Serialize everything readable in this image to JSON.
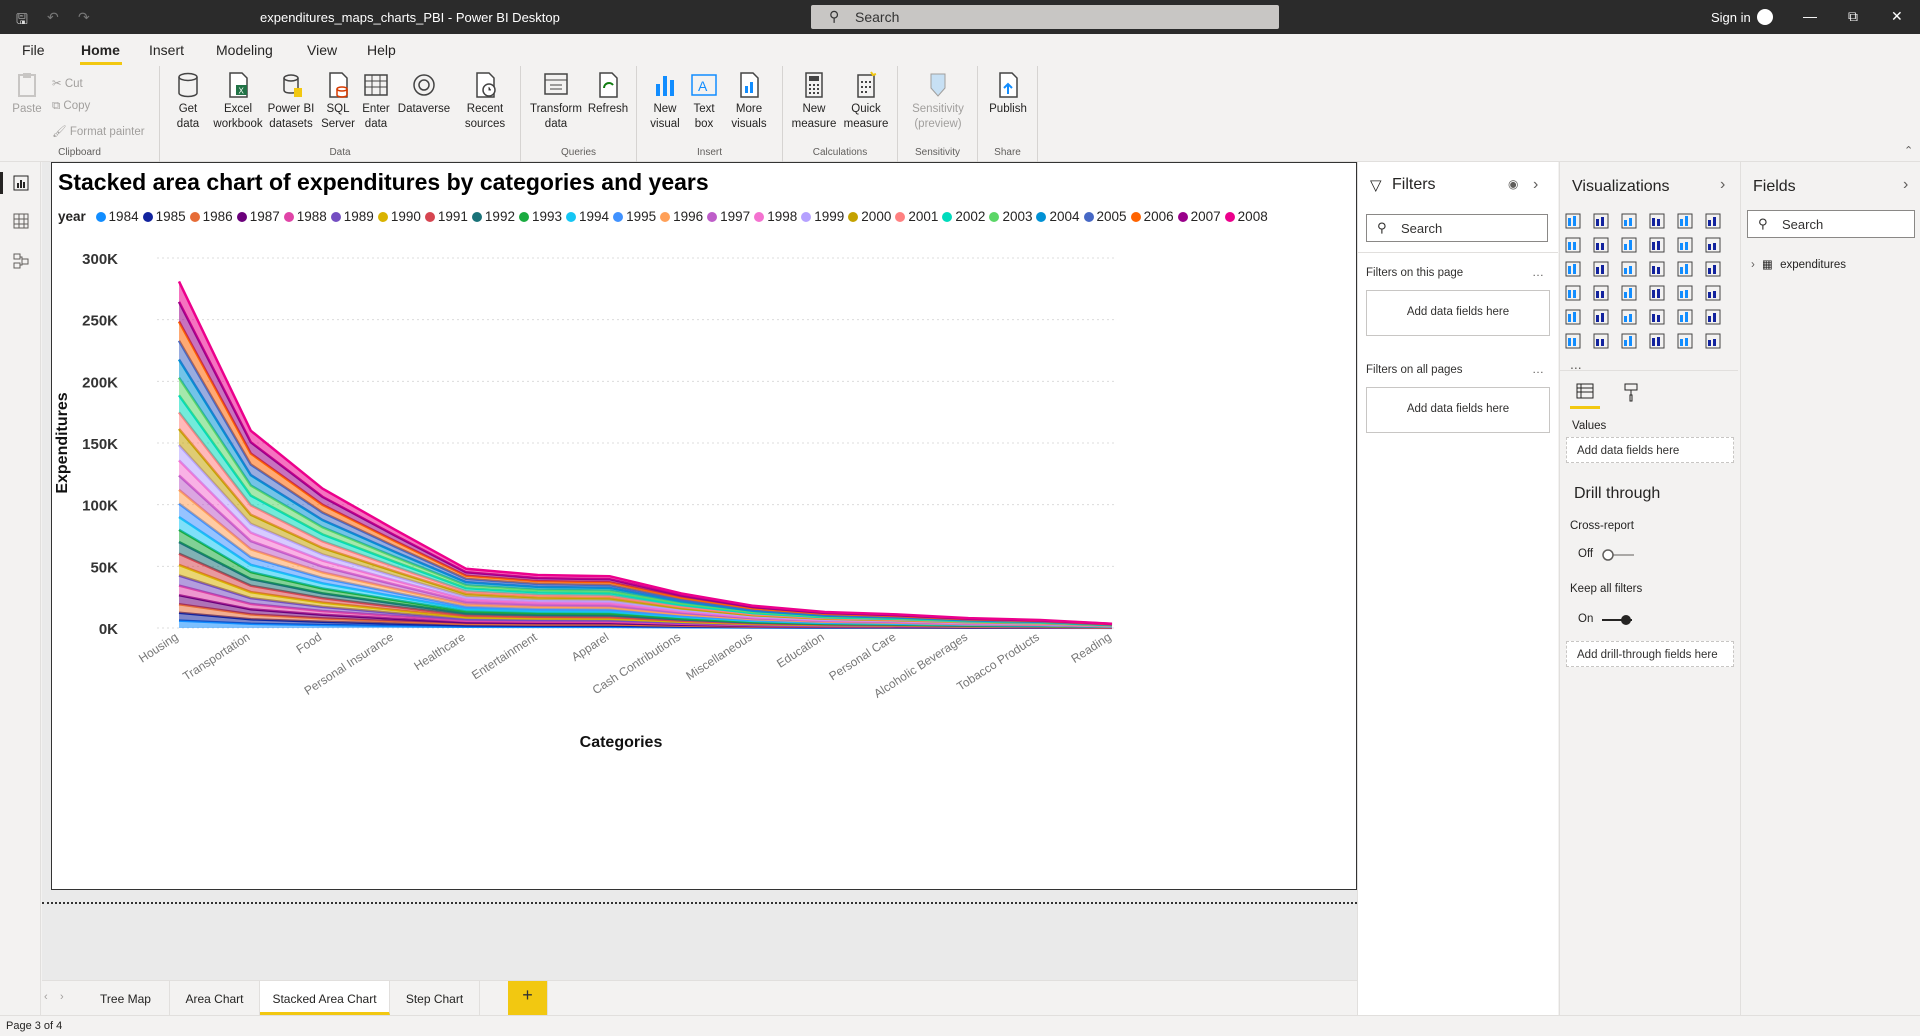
{
  "window": {
    "title": "expenditures_maps_charts_PBI - Power BI Desktop",
    "search_placeholder": "Search",
    "sign_in": "Sign in"
  },
  "menu": [
    "File",
    "Home",
    "Insert",
    "Modeling",
    "View",
    "Help"
  ],
  "ribbon": {
    "clipboard": {
      "paste": "Paste",
      "cut": "Cut",
      "copy": "Copy",
      "format_painter": "Format painter",
      "group": "Clipboard"
    },
    "data": {
      "get_data": "Get data",
      "excel": "Excel workbook",
      "pbi_datasets": "Power BI datasets",
      "sql": "SQL Server",
      "enter": "Enter data",
      "dataverse": "Dataverse",
      "recent": "Recent sources",
      "group": "Data"
    },
    "queries": {
      "transform": "Transform data",
      "refresh": "Refresh",
      "group": "Queries"
    },
    "insert": {
      "new_visual": "New visual",
      "text_box": "Text box",
      "more_visuals": "More visuals",
      "group": "Insert"
    },
    "calculations": {
      "new_measure": "New measure",
      "quick_measure": "Quick measure",
      "group": "Calculations"
    },
    "sensitivity": {
      "label": "Sensitivity (preview)",
      "group": "Sensitivity"
    },
    "share": {
      "publish": "Publish",
      "group": "Share"
    }
  },
  "filters": {
    "title": "Filters",
    "search": "Search",
    "on_page": "Filters on this page",
    "on_all": "Filters on all pages",
    "add_fields": "Add data fields here"
  },
  "visualizations": {
    "title": "Visualizations",
    "values_label": "Values",
    "add_fields": "Add data fields here",
    "drill_title": "Drill through",
    "cross_report": "Cross-report",
    "cross_state": "Off",
    "keep_filters": "Keep all filters",
    "keep_state": "On",
    "add_drill": "Add drill-through fields here",
    "more": "..."
  },
  "fields": {
    "title": "Fields",
    "search": "Search",
    "table": "expenditures"
  },
  "tabs": [
    "Tree Map",
    "Area Chart",
    "Stacked Area Chart",
    "Step Chart"
  ],
  "active_tab": "Stacked Area Chart",
  "status": "Page 3 of 4",
  "chart_data": {
    "type": "area",
    "title": "Stacked area chart of expenditures by categories and years",
    "xlabel": "Categories",
    "ylabel": "Expenditures",
    "legend_title": "year",
    "ylim": [
      0,
      300000
    ],
    "yticks": [
      "0K",
      "50K",
      "100K",
      "150K",
      "200K",
      "250K",
      "300K"
    ],
    "categories": [
      "Housing",
      "Transportation",
      "Food",
      "Personal Insurance",
      "Healthcare",
      "Entertainment",
      "Apparel",
      "Cash Contributions",
      "Miscellaneous",
      "Education",
      "Personal Care",
      "Alcoholic Beverages",
      "Tobacco Products",
      "Reading"
    ],
    "totals": [
      281000,
      160000,
      113000,
      80000,
      48000,
      43000,
      42000,
      28000,
      18000,
      13000,
      11000,
      8000,
      6500,
      3500
    ],
    "series": [
      {
        "name": "1984",
        "color": "#118dff"
      },
      {
        "name": "1985",
        "color": "#12239e"
      },
      {
        "name": "1986",
        "color": "#e66c37"
      },
      {
        "name": "1987",
        "color": "#6b007b"
      },
      {
        "name": "1988",
        "color": "#e044a7"
      },
      {
        "name": "1989",
        "color": "#744ec2"
      },
      {
        "name": "1990",
        "color": "#d9b300"
      },
      {
        "name": "1991",
        "color": "#d64550"
      },
      {
        "name": "1992",
        "color": "#197278"
      },
      {
        "name": "1993",
        "color": "#1aab40"
      },
      {
        "name": "1994",
        "color": "#15c6f4"
      },
      {
        "name": "1995",
        "color": "#4092ff"
      },
      {
        "name": "1996",
        "color": "#ffa058"
      },
      {
        "name": "1997",
        "color": "#be5dc9"
      },
      {
        "name": "1998",
        "color": "#f472d0"
      },
      {
        "name": "1999",
        "color": "#b5a1ff"
      },
      {
        "name": "2000",
        "color": "#c4a200"
      },
      {
        "name": "2001",
        "color": "#ff8080"
      },
      {
        "name": "2002",
        "color": "#00dbbc"
      },
      {
        "name": "2003",
        "color": "#5bd667"
      },
      {
        "name": "2004",
        "color": "#0091d5"
      },
      {
        "name": "2005",
        "color": "#4668c5"
      },
      {
        "name": "2006",
        "color": "#ff6300"
      },
      {
        "name": "2007",
        "color": "#99008a"
      },
      {
        "name": "2008",
        "color": "#ec008c"
      }
    ]
  }
}
